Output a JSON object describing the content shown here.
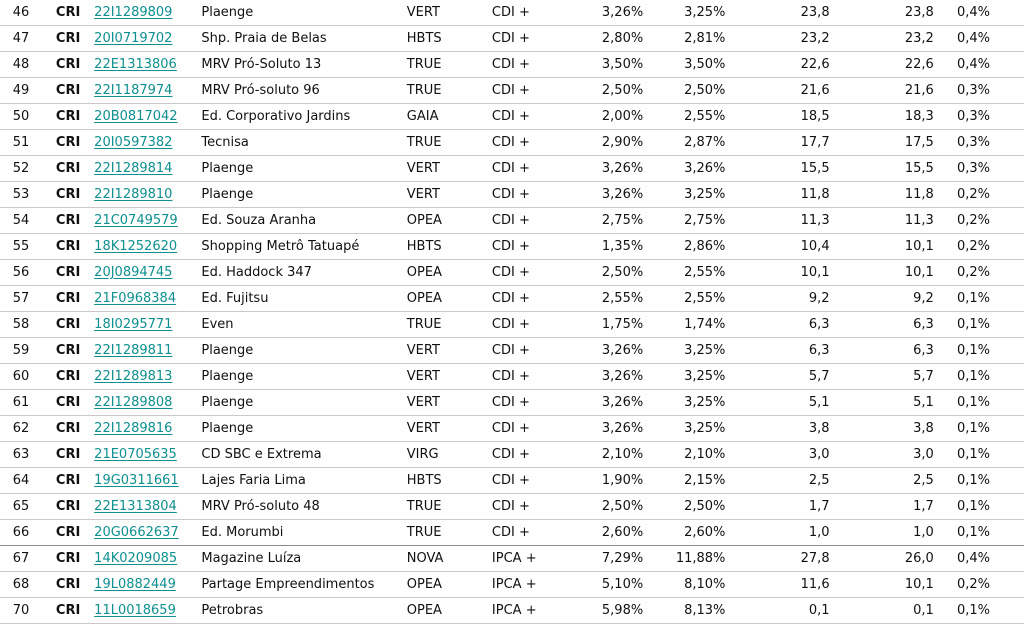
{
  "rows": [
    {
      "n": "46",
      "type": "CRI",
      "code": "22I1289809",
      "name": "Plaenge",
      "sec": "VERT",
      "idx": "CDI +",
      "rate1": "3,26%",
      "rate2": "3,25%",
      "v1": "23,8",
      "v2": "23,8",
      "pct": "0,4%"
    },
    {
      "n": "47",
      "type": "CRI",
      "code": "20I0719702",
      "name": "Shp. Praia de Belas",
      "sec": "HBTS",
      "idx": "CDI +",
      "rate1": "2,80%",
      "rate2": "2,81%",
      "v1": "23,2",
      "v2": "23,2",
      "pct": "0,4%"
    },
    {
      "n": "48",
      "type": "CRI",
      "code": "22E1313806",
      "name": "MRV Pró-Soluto 13",
      "sec": "TRUE",
      "idx": "CDI +",
      "rate1": "3,50%",
      "rate2": "3,50%",
      "v1": "22,6",
      "v2": "22,6",
      "pct": "0,4%"
    },
    {
      "n": "49",
      "type": "CRI",
      "code": "22I1187974",
      "name": "MRV Pró-soluto 96",
      "sec": "TRUE",
      "idx": "CDI +",
      "rate1": "2,50%",
      "rate2": "2,50%",
      "v1": "21,6",
      "v2": "21,6",
      "pct": "0,3%"
    },
    {
      "n": "50",
      "type": "CRI",
      "code": "20B0817042",
      "name": "Ed. Corporativo Jardins",
      "sec": "GAIA",
      "idx": "CDI +",
      "rate1": "2,00%",
      "rate2": "2,55%",
      "v1": "18,5",
      "v2": "18,3",
      "pct": "0,3%"
    },
    {
      "n": "51",
      "type": "CRI",
      "code": "20I0597382",
      "name": "Tecnisa",
      "sec": "TRUE",
      "idx": "CDI +",
      "rate1": "2,90%",
      "rate2": "2,87%",
      "v1": "17,7",
      "v2": "17,5",
      "pct": "0,3%"
    },
    {
      "n": "52",
      "type": "CRI",
      "code": "22I1289814",
      "name": "Plaenge",
      "sec": "VERT",
      "idx": "CDI +",
      "rate1": "3,26%",
      "rate2": "3,26%",
      "v1": "15,5",
      "v2": "15,5",
      "pct": "0,3%"
    },
    {
      "n": "53",
      "type": "CRI",
      "code": "22I1289810",
      "name": "Plaenge",
      "sec": "VERT",
      "idx": "CDI +",
      "rate1": "3,26%",
      "rate2": "3,25%",
      "v1": "11,8",
      "v2": "11,8",
      "pct": "0,2%"
    },
    {
      "n": "54",
      "type": "CRI",
      "code": "21C0749579",
      "name": "Ed. Souza Aranha",
      "sec": "OPEA",
      "idx": "CDI +",
      "rate1": "2,75%",
      "rate2": "2,75%",
      "v1": "11,3",
      "v2": "11,3",
      "pct": "0,2%"
    },
    {
      "n": "55",
      "type": "CRI",
      "code": "18K1252620",
      "name": "Shopping Metrô Tatuapé",
      "sec": "HBTS",
      "idx": "CDI +",
      "rate1": "1,35%",
      "rate2": "2,86%",
      "v1": "10,4",
      "v2": "10,1",
      "pct": "0,2%"
    },
    {
      "n": "56",
      "type": "CRI",
      "code": "20J0894745",
      "name": "Ed. Haddock 347",
      "sec": "OPEA",
      "idx": "CDI +",
      "rate1": "2,50%",
      "rate2": "2,55%",
      "v1": "10,1",
      "v2": "10,1",
      "pct": "0,2%"
    },
    {
      "n": "57",
      "type": "CRI",
      "code": "21F0968384",
      "name": "Ed. Fujitsu",
      "sec": "OPEA",
      "idx": "CDI +",
      "rate1": "2,55%",
      "rate2": "2,55%",
      "v1": "9,2",
      "v2": "9,2",
      "pct": "0,1%"
    },
    {
      "n": "58",
      "type": "CRI",
      "code": "18I0295771",
      "name": "Even",
      "sec": "TRUE",
      "idx": "CDI +",
      "rate1": "1,75%",
      "rate2": "1,74%",
      "v1": "6,3",
      "v2": "6,3",
      "pct": "0,1%"
    },
    {
      "n": "59",
      "type": "CRI",
      "code": "22I1289811",
      "name": "Plaenge",
      "sec": "VERT",
      "idx": "CDI +",
      "rate1": "3,26%",
      "rate2": "3,25%",
      "v1": "6,3",
      "v2": "6,3",
      "pct": "0,1%"
    },
    {
      "n": "60",
      "type": "CRI",
      "code": "22I1289813",
      "name": "Plaenge",
      "sec": "VERT",
      "idx": "CDI +",
      "rate1": "3,26%",
      "rate2": "3,25%",
      "v1": "5,7",
      "v2": "5,7",
      "pct": "0,1%"
    },
    {
      "n": "61",
      "type": "CRI",
      "code": "22I1289808",
      "name": "Plaenge",
      "sec": "VERT",
      "idx": "CDI +",
      "rate1": "3,26%",
      "rate2": "3,25%",
      "v1": "5,1",
      "v2": "5,1",
      "pct": "0,1%"
    },
    {
      "n": "62",
      "type": "CRI",
      "code": "22I1289816",
      "name": "Plaenge",
      "sec": "VERT",
      "idx": "CDI +",
      "rate1": "3,26%",
      "rate2": "3,25%",
      "v1": "3,8",
      "v2": "3,8",
      "pct": "0,1%"
    },
    {
      "n": "63",
      "type": "CRI",
      "code": "21E0705635",
      "name": "CD SBC e Extrema",
      "sec": "VIRG",
      "idx": "CDI +",
      "rate1": "2,10%",
      "rate2": "2,10%",
      "v1": "3,0",
      "v2": "3,0",
      "pct": "0,1%"
    },
    {
      "n": "64",
      "type": "CRI",
      "code": "19G0311661",
      "name": "Lajes Faria Lima",
      "sec": "HBTS",
      "idx": "CDI +",
      "rate1": "1,90%",
      "rate2": "2,15%",
      "v1": "2,5",
      "v2": "2,5",
      "pct": "0,1%"
    },
    {
      "n": "65",
      "type": "CRI",
      "code": "22E1313804",
      "name": "MRV Pró-soluto 48",
      "sec": "TRUE",
      "idx": "CDI +",
      "rate1": "2,50%",
      "rate2": "2,50%",
      "v1": "1,7",
      "v2": "1,7",
      "pct": "0,1%"
    },
    {
      "n": "66",
      "type": "CRI",
      "code": "20G0662637",
      "name": "Ed. Morumbi",
      "sec": "TRUE",
      "idx": "CDI +",
      "rate1": "2,60%",
      "rate2": "2,60%",
      "v1": "1,0",
      "v2": "1,0",
      "pct": "0,1%"
    },
    {
      "n": "67",
      "type": "CRI",
      "code": "14K0209085",
      "name": "Magazine Luíza",
      "sec": "NOVA",
      "idx": "IPCA +",
      "rate1": "7,29%",
      "rate2": "11,88%",
      "v1": "27,8",
      "v2": "26,0",
      "pct": "0,4%"
    },
    {
      "n": "68",
      "type": "CRI",
      "code": "19L0882449",
      "name": "Partage Empreendimentos",
      "sec": "OPEA",
      "idx": "IPCA +",
      "rate1": "5,10%",
      "rate2": "8,10%",
      "v1": "11,6",
      "v2": "10,1",
      "pct": "0,2%"
    },
    {
      "n": "70",
      "type": "CRI",
      "code": "11L0018659",
      "name": "Petrobras",
      "sec": "OPEA",
      "idx": "IPCA +",
      "rate1": "5,98%",
      "rate2": "8,13%",
      "v1": "0,1",
      "v2": "0,1",
      "pct": "0,1%"
    }
  ],
  "colors": {
    "link": "#0f8f8f"
  }
}
